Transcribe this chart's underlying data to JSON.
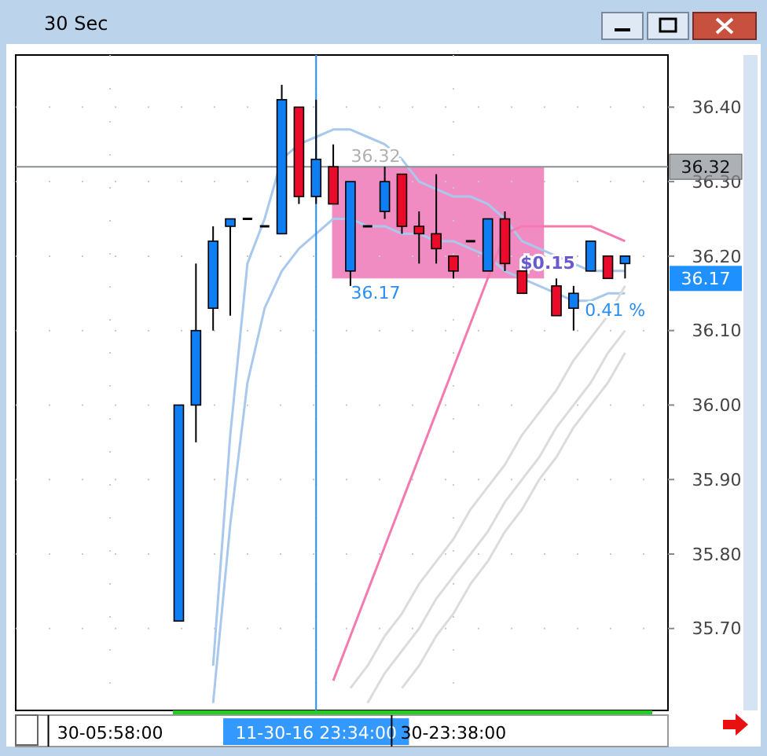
{
  "chart_data": {
    "type": "candlestick",
    "title": "30 Sec",
    "categories": [
      null,
      null,
      null,
      null,
      null,
      "30-05:58:00",
      null,
      null,
      null,
      null,
      null,
      null,
      null,
      null,
      null,
      null,
      null,
      "11-30-16 23:34:00",
      null,
      null,
      null,
      null,
      null,
      null,
      null,
      "30-23:38:00",
      null,
      null,
      null,
      null,
      null,
      null,
      null,
      null,
      null,
      null,
      null,
      null
    ],
    "ohlc": [
      null,
      null,
      null,
      null,
      null,
      null,
      null,
      null,
      null,
      [
        35.71,
        36.0,
        35.71,
        36.0
      ],
      [
        36.0,
        36.19,
        35.95,
        36.1
      ],
      [
        36.13,
        36.24,
        36.1,
        36.22
      ],
      [
        36.24,
        36.25,
        36.12,
        36.25
      ],
      [
        36.25,
        36.25,
        36.25,
        36.25
      ],
      [
        36.24,
        36.24,
        36.24,
        36.24
      ],
      [
        36.23,
        36.43,
        36.23,
        36.41
      ],
      [
        36.4,
        36.4,
        36.27,
        36.28
      ],
      [
        36.28,
        36.41,
        36.27,
        36.33
      ],
      [
        36.32,
        36.35,
        36.27,
        36.27
      ],
      [
        36.18,
        36.3,
        36.16,
        36.3
      ],
      [
        36.24,
        36.24,
        36.24,
        36.24
      ],
      [
        36.26,
        36.32,
        36.25,
        36.3
      ],
      [
        36.31,
        36.31,
        36.23,
        36.24
      ],
      [
        36.24,
        36.26,
        36.19,
        36.23
      ],
      [
        36.23,
        36.31,
        36.19,
        36.21
      ],
      [
        36.2,
        36.2,
        36.17,
        36.18
      ],
      [
        36.22,
        36.22,
        36.22,
        36.22
      ],
      [
        36.18,
        36.25,
        36.18,
        36.25
      ],
      [
        36.25,
        36.26,
        36.18,
        36.19
      ],
      [
        36.18,
        36.18,
        36.15,
        36.15
      ],
      null,
      [
        36.16,
        36.17,
        36.12,
        36.12
      ],
      [
        36.13,
        36.16,
        36.1,
        36.15
      ],
      [
        36.18,
        36.22,
        36.18,
        36.22
      ],
      [
        36.2,
        36.2,
        36.17,
        36.17
      ],
      [
        36.19,
        36.2,
        36.17,
        36.2
      ],
      null,
      null
    ],
    "colors": [
      null,
      null,
      null,
      null,
      null,
      null,
      null,
      null,
      null,
      "#0f7ef2",
      "#0f7ef2",
      "#0f7ef2",
      "#0f7ef2",
      "#000000",
      "#000000",
      "#0f7ef2",
      "#ea0a2a",
      "#0f7ef2",
      "#ea0a2a",
      "#0f7ef2",
      "#000000",
      "#0f7ef2",
      "#ea0a2a",
      "#ea0a2a",
      "#ea0a2a",
      "#ea0a2a",
      "#000000",
      "#0f7ef2",
      "#ea0a2a",
      "#ea0a2a",
      null,
      "#ea0a2a",
      "#0f7ef2",
      "#0f7ef2",
      "#ea0a2a",
      "#0f7ef2",
      null,
      null
    ],
    "series": [
      {
        "type": "line",
        "color": "#a9c8ee",
        "values": [
          null,
          null,
          null,
          null,
          null,
          null,
          null,
          null,
          null,
          null,
          null,
          35.65,
          35.96,
          36.19,
          36.25,
          36.33,
          36.35,
          36.36,
          36.37,
          36.37,
          36.36,
          36.35,
          36.33,
          36.3,
          36.29,
          36.28,
          36.28,
          36.27,
          36.25,
          36.22,
          36.21,
          36.2,
          36.19,
          36.18,
          36.18,
          36.18,
          null,
          null
        ]
      },
      {
        "type": "line",
        "color": "#a9c8ee",
        "values": [
          null,
          null,
          null,
          null,
          null,
          null,
          null,
          null,
          null,
          null,
          null,
          35.6,
          35.84,
          36.03,
          36.13,
          36.18,
          36.21,
          36.23,
          36.25,
          36.25,
          36.24,
          36.24,
          36.23,
          36.23,
          36.22,
          36.22,
          36.21,
          36.2,
          36.18,
          36.17,
          36.16,
          36.15,
          36.14,
          36.14,
          36.15,
          36.15,
          null,
          null
        ]
      },
      {
        "type": "line",
        "color": "#f47ab0",
        "values": [
          null,
          null,
          null,
          null,
          null,
          null,
          null,
          null,
          null,
          null,
          null,
          null,
          null,
          null,
          null,
          null,
          null,
          null,
          35.63,
          35.69,
          35.75,
          35.81,
          35.87,
          35.93,
          35.99,
          36.05,
          36.11,
          36.17,
          36.23,
          36.24,
          36.24,
          36.24,
          36.24,
          36.24,
          36.23,
          36.22,
          null,
          null
        ]
      },
      {
        "type": "line",
        "color": "#dcdcdc",
        "values": [
          null,
          null,
          null,
          null,
          null,
          null,
          null,
          null,
          null,
          null,
          null,
          null,
          null,
          null,
          null,
          null,
          null,
          null,
          null,
          35.62,
          35.65,
          35.69,
          35.72,
          35.76,
          35.79,
          35.82,
          35.86,
          35.89,
          35.92,
          35.96,
          35.99,
          36.02,
          36.06,
          36.09,
          36.12,
          36.16,
          null,
          null
        ]
      },
      {
        "type": "line",
        "color": "#dcdcdc",
        "values": [
          null,
          null,
          null,
          null,
          null,
          null,
          null,
          null,
          null,
          null,
          null,
          null,
          null,
          null,
          null,
          null,
          null,
          null,
          null,
          null,
          35.6,
          35.64,
          35.67,
          35.7,
          35.74,
          35.77,
          35.8,
          35.83,
          35.87,
          35.9,
          35.93,
          35.97,
          36.0,
          36.03,
          36.07,
          36.1,
          null,
          null
        ]
      },
      {
        "type": "line",
        "color": "#dcdcdc",
        "values": [
          null,
          null,
          null,
          null,
          null,
          null,
          null,
          null,
          null,
          null,
          null,
          null,
          null,
          null,
          null,
          null,
          null,
          null,
          null,
          null,
          null,
          null,
          35.62,
          35.65,
          35.69,
          35.72,
          35.76,
          35.79,
          35.83,
          35.86,
          35.9,
          35.93,
          35.97,
          36.0,
          36.03,
          36.07,
          null,
          null
        ]
      }
    ],
    "ylim": [
      35.59,
      36.47
    ],
    "yticks": [
      {
        "value": 35.7,
        "label": "35.70"
      },
      {
        "value": 35.8,
        "label": "35.80"
      },
      {
        "value": 35.9,
        "label": "35.90"
      },
      {
        "value": 36.0,
        "label": "36.00"
      },
      {
        "value": 36.1,
        "label": "36.10"
      },
      {
        "value": 36.2,
        "label": "36.20"
      },
      {
        "value": 36.3,
        "label": "36.30"
      },
      {
        "value": 36.4,
        "label": "36.40"
      }
    ],
    "grid": true,
    "ref_lines": [
      {
        "axis": "y",
        "value": 36.32,
        "label": "36.32",
        "color": "#8a8f96"
      },
      {
        "axis": "x",
        "value": "11-30-16 23:34:00",
        "label": null,
        "color": "#1e90ff"
      }
    ],
    "bands": [
      {
        "axis": "y",
        "from": 36.17,
        "to": 36.32,
        "label": null,
        "color": "#f08cc2"
      }
    ],
    "annotations": [
      "36.32",
      "36.17",
      "$0.15",
      "0.41 %",
      "36.17"
    ]
  }
}
